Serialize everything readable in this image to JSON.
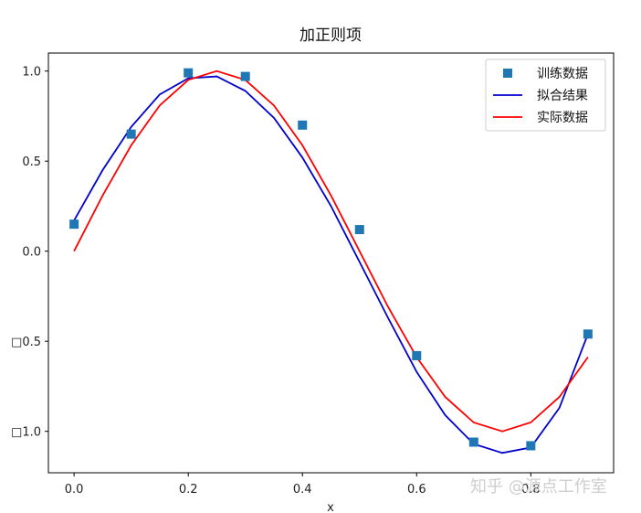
{
  "chart_data": {
    "type": "line",
    "title": "加正则项",
    "xlabel": "x",
    "ylabel": "",
    "xlim": [
      -0.045,
      0.945
    ],
    "ylim": [
      -1.23,
      1.1
    ],
    "xticks": [
      0.0,
      0.2,
      0.4,
      0.6,
      0.8
    ],
    "xtick_labels": [
      "0.0",
      "0.2",
      "0.4",
      "0.6",
      "0.8"
    ],
    "yticks": [
      1.0,
      0.5,
      0.0,
      -0.5,
      -1.0
    ],
    "ytick_labels": [
      "1.0",
      "0.5",
      "0.0",
      "□0.5",
      "□1.0"
    ],
    "grid": false,
    "legend_position": "top-right",
    "series": [
      {
        "name": "训练数据",
        "kind": "scatter",
        "marker": "square",
        "color": "#1f77b4",
        "x": [
          0.0,
          0.1,
          0.2,
          0.3,
          0.4,
          0.5,
          0.6,
          0.7,
          0.8,
          0.9
        ],
        "y": [
          0.15,
          0.65,
          0.99,
          0.97,
          0.7,
          0.12,
          -0.58,
          -1.06,
          -1.08,
          -0.46
        ]
      },
      {
        "name": "拟合结果",
        "kind": "line",
        "color": "#0000cc",
        "x": [
          0.0,
          0.05,
          0.1,
          0.15,
          0.2,
          0.25,
          0.3,
          0.35,
          0.4,
          0.45,
          0.5,
          0.55,
          0.6,
          0.65,
          0.7,
          0.75,
          0.8,
          0.85,
          0.9
        ],
        "y": [
          0.17,
          0.45,
          0.69,
          0.87,
          0.96,
          0.97,
          0.89,
          0.74,
          0.52,
          0.25,
          -0.06,
          -0.37,
          -0.67,
          -0.91,
          -1.07,
          -1.12,
          -1.09,
          -0.87,
          -0.46
        ]
      },
      {
        "name": "实际数据",
        "kind": "line",
        "color": "#ff0000",
        "x": [
          0.0,
          0.05,
          0.1,
          0.15,
          0.2,
          0.25,
          0.3,
          0.35,
          0.4,
          0.45,
          0.5,
          0.55,
          0.6,
          0.65,
          0.7,
          0.75,
          0.8,
          0.85,
          0.9
        ],
        "y": [
          0.0,
          0.309,
          0.588,
          0.809,
          0.951,
          1.0,
          0.951,
          0.809,
          0.588,
          0.309,
          0.0,
          -0.309,
          -0.588,
          -0.809,
          -0.951,
          -1.0,
          -0.951,
          -0.809,
          -0.588
        ]
      }
    ]
  },
  "watermark": "知乎 @源点工作室"
}
